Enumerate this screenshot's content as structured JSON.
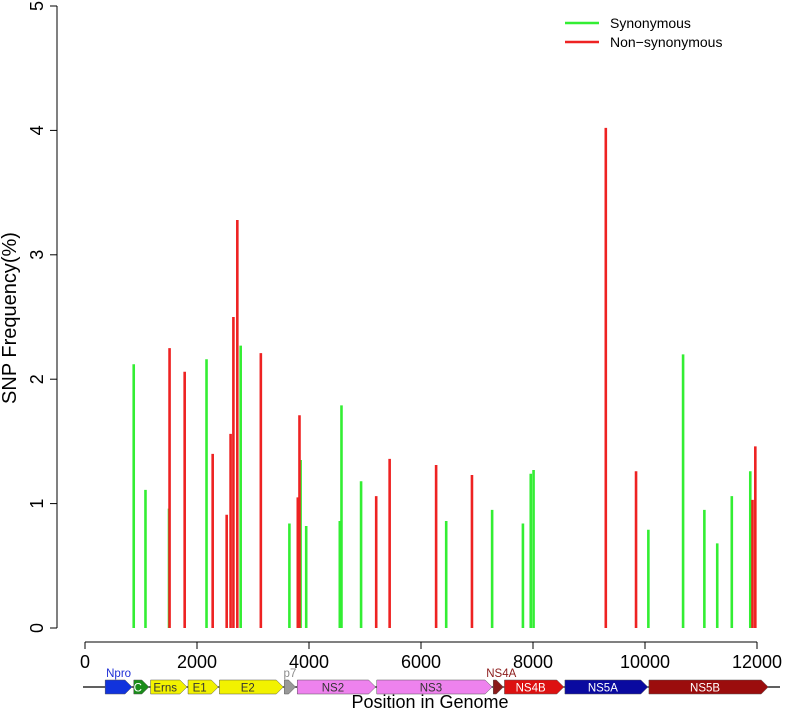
{
  "chart_data": {
    "type": "bar",
    "title": "",
    "xlabel": "Position in Genome",
    "ylabel": "SNP Frequency(%)",
    "xlim": [
      0,
      12000
    ],
    "ylim": [
      0,
      5
    ],
    "x_ticks": [
      0,
      2000,
      4000,
      6000,
      8000,
      10000,
      12000
    ],
    "y_ticks": [
      0,
      1,
      2,
      3,
      4,
      5
    ],
    "legend": {
      "position": "top-right"
    },
    "series": [
      {
        "name": "Synonymous",
        "color": "#33ee33",
        "points": [
          {
            "x": 870,
            "y": 2.12
          },
          {
            "x": 1080,
            "y": 1.11
          },
          {
            "x": 1500,
            "y": 0.96
          },
          {
            "x": 2170,
            "y": 2.16
          },
          {
            "x": 2780,
            "y": 2.27
          },
          {
            "x": 3650,
            "y": 0.84
          },
          {
            "x": 3850,
            "y": 1.35
          },
          {
            "x": 3950,
            "y": 0.82
          },
          {
            "x": 4550,
            "y": 0.86
          },
          {
            "x": 4580,
            "y": 1.79
          },
          {
            "x": 4930,
            "y": 1.18
          },
          {
            "x": 6450,
            "y": 0.86
          },
          {
            "x": 7270,
            "y": 0.95
          },
          {
            "x": 7820,
            "y": 0.84
          },
          {
            "x": 7960,
            "y": 1.24
          },
          {
            "x": 8010,
            "y": 1.27
          },
          {
            "x": 10060,
            "y": 0.79
          },
          {
            "x": 10680,
            "y": 2.2
          },
          {
            "x": 11060,
            "y": 0.95
          },
          {
            "x": 11290,
            "y": 0.68
          },
          {
            "x": 11550,
            "y": 1.06
          },
          {
            "x": 11880,
            "y": 1.26
          }
        ]
      },
      {
        "name": "Non−synonymous",
        "color": "#ee2222",
        "points": [
          {
            "x": 1510,
            "y": 2.25
          },
          {
            "x": 1780,
            "y": 2.06
          },
          {
            "x": 2280,
            "y": 1.4
          },
          {
            "x": 2530,
            "y": 0.91
          },
          {
            "x": 2600,
            "y": 1.56
          },
          {
            "x": 2650,
            "y": 2.5
          },
          {
            "x": 2720,
            "y": 3.28
          },
          {
            "x": 3140,
            "y": 2.21
          },
          {
            "x": 3800,
            "y": 1.05
          },
          {
            "x": 3830,
            "y": 1.71
          },
          {
            "x": 5200,
            "y": 1.06
          },
          {
            "x": 5440,
            "y": 1.36
          },
          {
            "x": 6270,
            "y": 1.31
          },
          {
            "x": 6910,
            "y": 1.23
          },
          {
            "x": 9300,
            "y": 4.02
          },
          {
            "x": 9840,
            "y": 1.26
          },
          {
            "x": 11920,
            "y": 1.03
          },
          {
            "x": 11970,
            "y": 1.46
          }
        ]
      }
    ],
    "genome_map": {
      "label_colors": {
        "Npro": "#1f2fd6",
        "p7": "#8c8c8c",
        "NS4A": "#8b1a1a"
      },
      "genes": [
        {
          "name": "Npro",
          "start": 360,
          "end": 840,
          "color": "#1133dd",
          "label_color": "#ffffff",
          "label": ""
        },
        {
          "name": "C",
          "start": 870,
          "end": 1140,
          "color": "#1a8c1a",
          "label_color": "#ffffff",
          "label": "C"
        },
        {
          "name": "Erns",
          "start": 1170,
          "end": 1820,
          "color": "#f2f200",
          "label_color": "#333333",
          "label": "Erns"
        },
        {
          "name": "E1",
          "start": 1840,
          "end": 2380,
          "color": "#f2f200",
          "label_color": "#333333",
          "label": "E1"
        },
        {
          "name": "E2",
          "start": 2400,
          "end": 3540,
          "color": "#f2f200",
          "label_color": "#333333",
          "label": "E2"
        },
        {
          "name": "p7",
          "start": 3560,
          "end": 3760,
          "color": "#999999",
          "label_color": "#ffffff",
          "label": ""
        },
        {
          "name": "NS2",
          "start": 3790,
          "end": 5190,
          "color": "#ee82ee",
          "label_color": "#333333",
          "label": "NS2"
        },
        {
          "name": "NS3",
          "start": 5210,
          "end": 7270,
          "color": "#ee82ee",
          "label_color": "#333333",
          "label": "NS3"
        },
        {
          "name": "NS4A",
          "start": 7290,
          "end": 7470,
          "color": "#8b1a1a",
          "label_color": "#ffffff",
          "label": ""
        },
        {
          "name": "NS4B",
          "start": 7490,
          "end": 8550,
          "color": "#dd1111",
          "label_color": "#ffffff",
          "label": "NS4B"
        },
        {
          "name": "NS5A",
          "start": 8570,
          "end": 10050,
          "color": "#0a0aa0",
          "label_color": "#ffffff",
          "label": "NS5A"
        },
        {
          "name": "NS5B",
          "start": 10070,
          "end": 12200,
          "color": "#9b0d0d",
          "label_color": "#ffffff",
          "label": "NS5B"
        }
      ],
      "above_labels": [
        "Npro",
        "p7",
        "NS4A"
      ]
    }
  }
}
